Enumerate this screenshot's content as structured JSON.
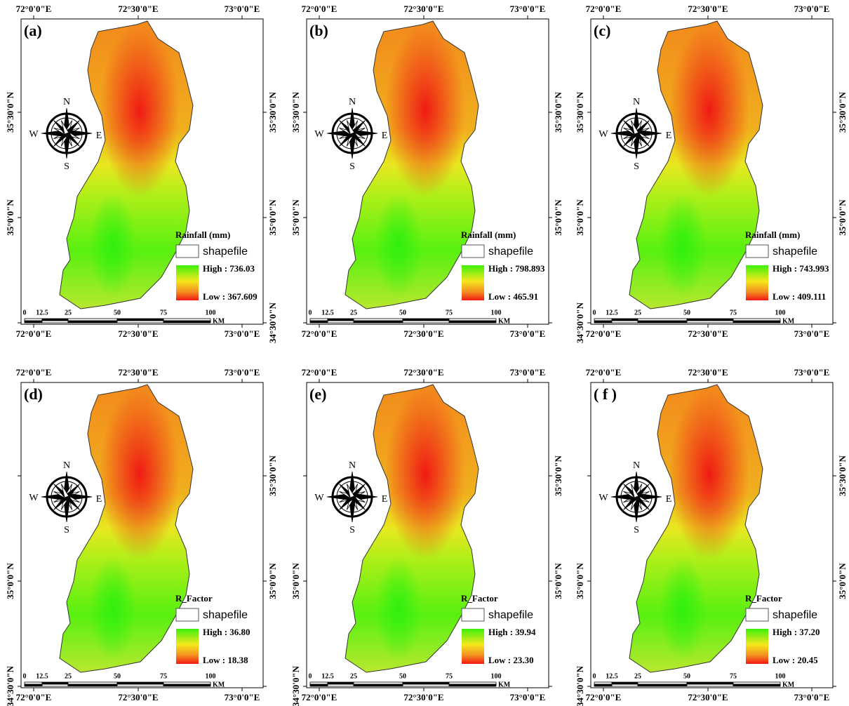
{
  "panels": [
    {
      "label": "(a)",
      "top_labels": [
        "72°0'0\"E",
        "72°30'0\"E",
        "73°0'0\"E"
      ],
      "bottom_labels": [
        "72°0'0\"E",
        "72°30'0\"E",
        "73°0'0\"E"
      ],
      "left_labels": [
        "35°30'0\"N",
        "35°0'0\"N",
        null
      ],
      "right_labels": [
        "35°30'0\"N",
        "35°0'0\"N",
        "34°30'0\"N"
      ],
      "compass": {
        "n": "N",
        "e": "E",
        "s": "S",
        "w": "W"
      },
      "legend": {
        "title": "Rainfall (mm)",
        "shapefile": "shapefile",
        "high": "High : 736.03",
        "low": "Low : 367.609"
      },
      "scale": {
        "labels": [
          "0",
          "12.5",
          "25",
          "50",
          "75",
          "100"
        ],
        "unit": "KM"
      }
    },
    {
      "label": "(b)",
      "top_labels": [
        "72°0'0\"E",
        "72°30'0\"E",
        "73°0'0\"E"
      ],
      "bottom_labels": [
        "72°0'0\"E",
        "72°30'0\"E",
        "73°0'0\"E"
      ],
      "left_labels": [
        "35°30'0\"N",
        "35°0'0\"N",
        null
      ],
      "right_labels": [
        "35°30'0\"N",
        "35°0'0\"N",
        null
      ],
      "compass": {
        "n": "N",
        "e": "E",
        "s": "S",
        "w": "W"
      },
      "legend": {
        "title": "Rainfall (mm)",
        "shapefile": "shapefile",
        "high": "High : 798.893",
        "low": "Low : 465.91"
      },
      "scale": {
        "labels": [
          "0",
          "12.5",
          "25",
          "50",
          "75",
          "100"
        ],
        "unit": "KM"
      }
    },
    {
      "label": "(c)",
      "top_labels": [
        "72°0'0\"E",
        "72°30'0\"E",
        "73°0'0\"E"
      ],
      "bottom_labels": [
        "72°0'0\"E",
        "72°30'0\"E",
        "73°0'0\"E"
      ],
      "left_labels": [
        "35°30'0\"N",
        "35°0'0\"N",
        "34°30'0\"N"
      ],
      "right_labels": [
        "35°30'0\"N",
        "35°0'0\"N",
        null
      ],
      "compass": {
        "n": "N",
        "e": "E",
        "s": "S",
        "w": "W"
      },
      "legend": {
        "title": "Rainfall (mm)",
        "shapefile": "shapefile",
        "high": "High : 743.993",
        "low": "Low : 409.111"
      },
      "scale": {
        "labels": [
          "0",
          "12.5",
          "25",
          "50",
          "75",
          "100"
        ],
        "unit": "KM"
      }
    },
    {
      "label": "(d)",
      "top_labels": [
        "72°0'0\"E",
        "72°30'0\"E",
        "73°0'0\"E"
      ],
      "bottom_labels": [
        "72°0'0\"E",
        "72°30'0\"E",
        "73°0'0\"E"
      ],
      "left_labels": [
        null,
        "35°0'0\"N",
        "34°30'0\"N"
      ],
      "right_labels": [
        "35°30'0\"N",
        "35°0'0\"N",
        null
      ],
      "compass": {
        "n": "N",
        "e": "E",
        "s": "S",
        "w": "W"
      },
      "legend": {
        "title": "R_Factor",
        "shapefile": "shapefile",
        "high": "High : 36.80",
        "low": "Low : 18.38"
      },
      "scale": {
        "labels": [
          "0",
          "12.5",
          "25",
          "50",
          "75",
          "100"
        ],
        "unit": "KM"
      }
    },
    {
      "label": "(e)",
      "top_labels": [
        "72°0'0\"E",
        "72°30'0\"E",
        "73°0'0\"E"
      ],
      "bottom_labels": [
        "72°0'0\"E",
        "72°30'0\"E",
        "73°0'0\"E"
      ],
      "left_labels": [
        null,
        "35°0'0\"N",
        "34°30'0\"N"
      ],
      "right_labels": [
        "35°30'0\"N",
        "35°0'0\"N",
        null
      ],
      "compass": {
        "n": "N",
        "e": "E",
        "s": "S",
        "w": "W"
      },
      "legend": {
        "title": "R_Factor",
        "shapefile": "shapefile",
        "high": "High : 39.94",
        "low": "Low : 23.30"
      },
      "scale": {
        "labels": [
          "0",
          "12.5",
          "25",
          "50",
          "75",
          "100"
        ],
        "unit": "KM"
      }
    },
    {
      "label": "( f )",
      "top_labels": [
        "72°0'0\"E",
        "72°30'0\"E",
        "73°0'0\"E"
      ],
      "bottom_labels": [
        "72°0'0\"E",
        "72°30'0\"E",
        "73°0'0\"E"
      ],
      "left_labels": [
        null,
        "35°0'0\"N",
        "34°30'0\"N"
      ],
      "right_labels": [
        "35°30'0\"N",
        "35°0'0\"N",
        null
      ],
      "compass": {
        "n": "N",
        "e": "E",
        "s": "S",
        "w": "W"
      },
      "legend": {
        "title": "R_Factor",
        "shapefile": "shapefile",
        "high": "High : 37.20",
        "low": "Low : 20.45"
      },
      "scale": {
        "labels": [
          "0",
          "12.5",
          "25",
          "50",
          "75",
          "100"
        ],
        "unit": "KM"
      }
    }
  ]
}
